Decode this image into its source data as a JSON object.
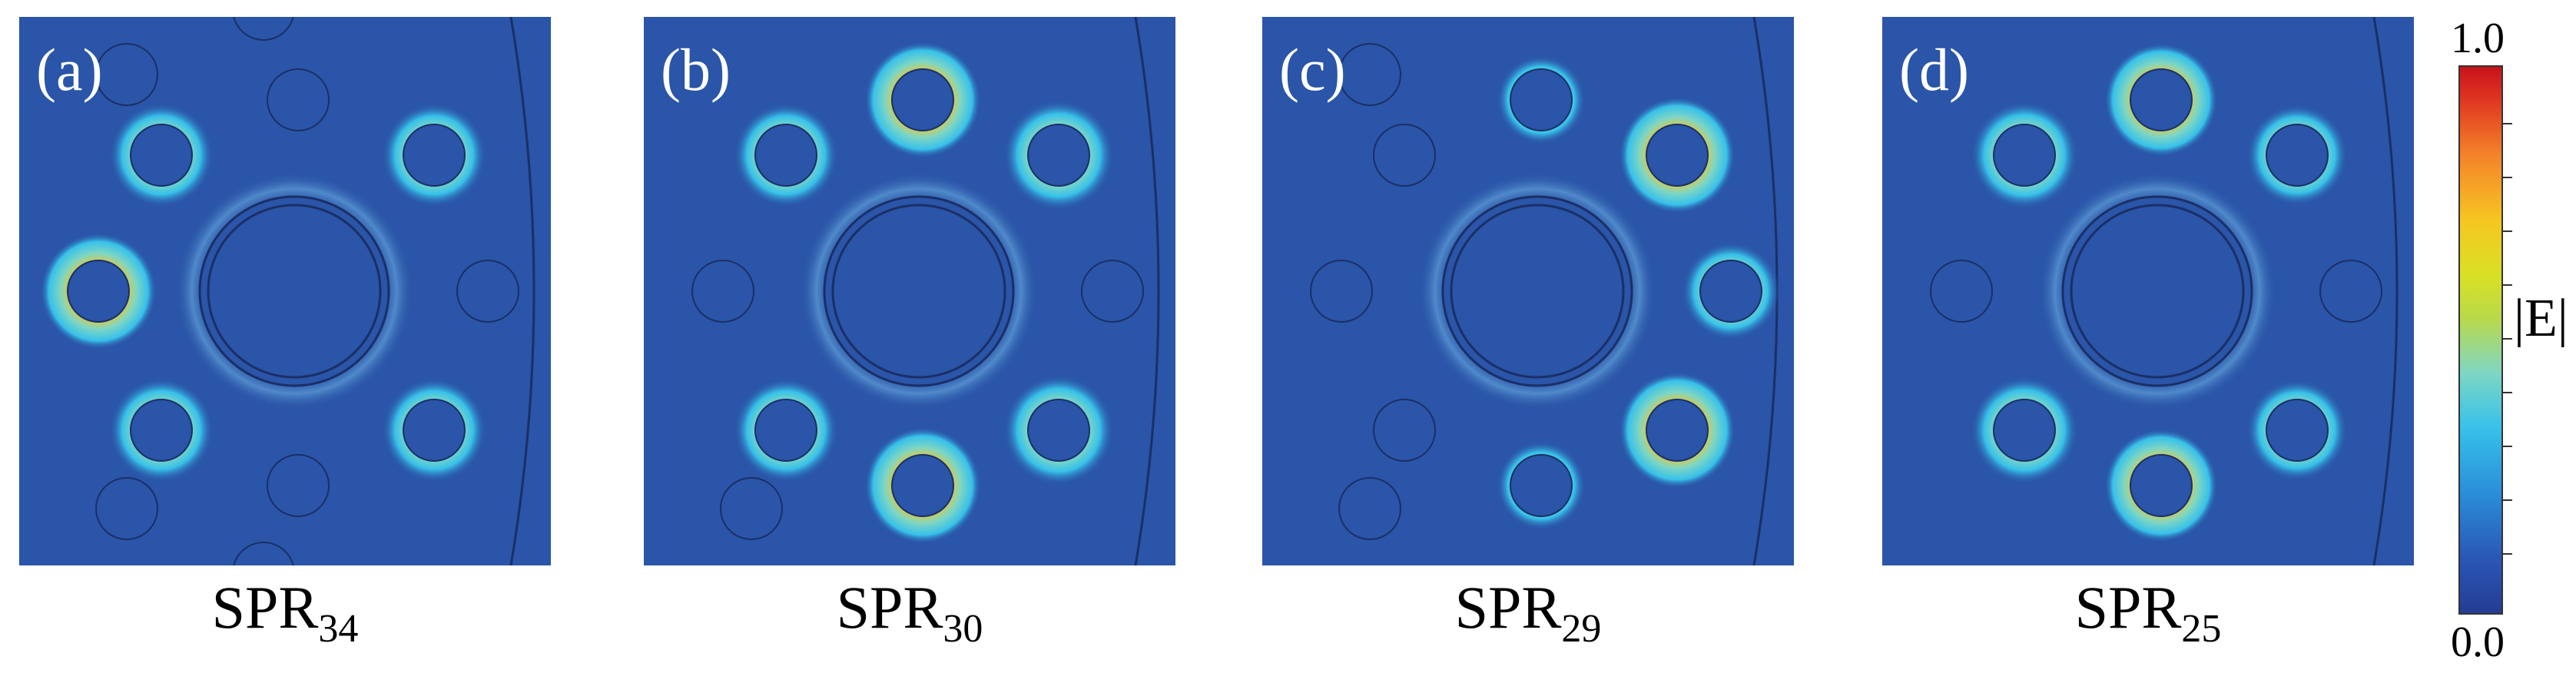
{
  "panels": [
    {
      "label": "(a)",
      "caption_main": "SPR",
      "caption_sub": "34"
    },
    {
      "label": "(b)",
      "caption_main": "SPR",
      "caption_sub": "30"
    },
    {
      "label": "(c)",
      "caption_main": "SPR",
      "caption_sub": "29"
    },
    {
      "label": "(d)",
      "caption_main": "SPR",
      "caption_sub": "25"
    }
  ],
  "colorbar": {
    "max_label": "1.0",
    "min_label": "0.0",
    "quantity": "|E|",
    "colors": [
      "#243c94",
      "#2a8fd9",
      "#37c1ea",
      "#b9d94a",
      "#f7c521",
      "#f4822a",
      "#c8121c"
    ]
  },
  "field": {
    "background": "#2a55a8",
    "core_fill": "#2a55a8"
  }
}
